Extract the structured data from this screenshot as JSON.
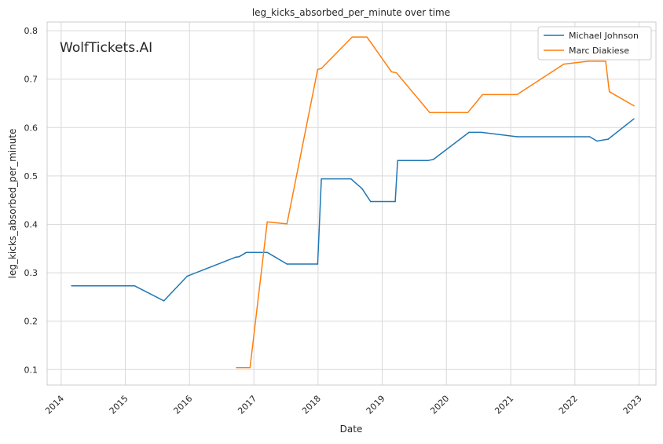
{
  "watermark": "WolfTickets.AI",
  "colors": {
    "series_1": "#1f77b4",
    "series_2": "#ff7f0e",
    "grid": "#d9d9d9",
    "axes_frame": "#cccccc",
    "watermark": "#c0c0c0"
  },
  "chart_data": {
    "type": "line",
    "title": "leg_kicks_absorbed_per_minute over time",
    "xlabel": "Date",
    "ylabel": "leg_kicks_absorbed_per_minute",
    "x_is_date": true,
    "xlim": [
      "2013-10-13",
      "2023-04-07"
    ],
    "ylim": [
      0.068,
      0.818
    ],
    "xticks": [
      "2014",
      "2015",
      "2016",
      "2017",
      "2018",
      "2019",
      "2020",
      "2021",
      "2022",
      "2023"
    ],
    "yticks": [
      "0.1",
      "0.2",
      "0.3",
      "0.4",
      "0.5",
      "0.6",
      "0.7",
      "0.8"
    ],
    "ytick_values": [
      0.1,
      0.2,
      0.3,
      0.4,
      0.5,
      0.6,
      0.7,
      0.8
    ],
    "grid": true,
    "legend_position": "top-right",
    "series": [
      {
        "name": "Michael Johnson",
        "color": "#1f77b4",
        "points": [
          [
            "2014-03-01",
            0.273
          ],
          [
            "2015-02-22",
            0.273
          ],
          [
            "2015-08-08",
            0.242
          ],
          [
            "2015-12-19",
            0.293
          ],
          [
            "2016-09-17",
            0.332
          ],
          [
            "2016-10-08",
            0.333
          ],
          [
            "2016-11-19",
            0.342
          ],
          [
            "2017-03-18",
            0.342
          ],
          [
            "2017-07-08",
            0.318
          ],
          [
            "2017-12-30",
            0.318
          ],
          [
            "2018-01-20",
            0.494
          ],
          [
            "2018-07-07",
            0.494
          ],
          [
            "2018-09-08",
            0.474
          ],
          [
            "2018-10-27",
            0.447
          ],
          [
            "2019-03-16",
            0.447
          ],
          [
            "2019-03-30",
            0.532
          ],
          [
            "2019-09-21",
            0.532
          ],
          [
            "2019-10-19",
            0.534
          ],
          [
            "2020-05-09",
            0.59
          ],
          [
            "2020-07-18",
            0.59
          ],
          [
            "2021-02-06",
            0.581
          ],
          [
            "2022-03-26",
            0.581
          ],
          [
            "2022-05-07",
            0.572
          ],
          [
            "2022-07-09",
            0.576
          ],
          [
            "2022-12-03",
            0.618
          ]
        ]
      },
      {
        "name": "Marc Diakiese",
        "color": "#ff7f0e",
        "points": [
          [
            "2016-09-24",
            0.104
          ],
          [
            "2016-12-10",
            0.104
          ],
          [
            "2017-03-18",
            0.405
          ],
          [
            "2017-07-08",
            0.401
          ],
          [
            "2017-12-30",
            0.72
          ],
          [
            "2018-01-20",
            0.722
          ],
          [
            "2018-07-14",
            0.787
          ],
          [
            "2018-10-06",
            0.787
          ],
          [
            "2019-02-23",
            0.715
          ],
          [
            "2019-03-23",
            0.713
          ],
          [
            "2019-09-28",
            0.631
          ],
          [
            "2020-05-02",
            0.631
          ],
          [
            "2020-07-25",
            0.668
          ],
          [
            "2021-02-06",
            0.668
          ],
          [
            "2021-10-30",
            0.731
          ],
          [
            "2022-03-19",
            0.737
          ],
          [
            "2022-06-25",
            0.737
          ],
          [
            "2022-07-16",
            0.674
          ],
          [
            "2022-12-03",
            0.645
          ]
        ]
      }
    ]
  }
}
